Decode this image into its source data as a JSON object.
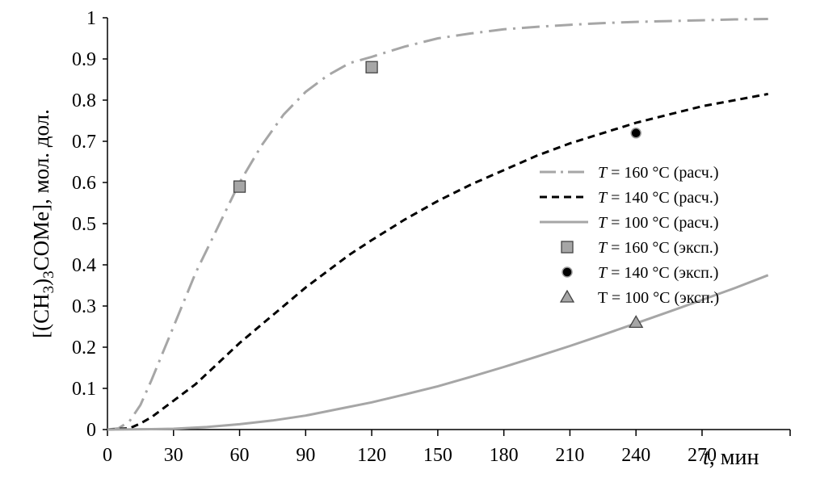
{
  "chart_data": {
    "type": "line",
    "xlabel_var": "t",
    "xlabel_unit": ", мин",
    "ylabel": "[(CH3)3COMe], мол. дол.",
    "ylabel_parts": [
      "[(CH",
      "3",
      ")",
      "3",
      "COMe], мол. дол."
    ],
    "xlim": [
      0,
      310
    ],
    "ylim": [
      0,
      1
    ],
    "x_ticks": [
      "0",
      "30",
      "60",
      "90",
      "120",
      "150",
      "180",
      "210",
      "240",
      "270"
    ],
    "y_ticks": [
      "0",
      "0.1",
      "0.2",
      "0.3",
      "0.4",
      "0.5",
      "0.6",
      "0.7",
      "0.8",
      "0.9",
      "1"
    ],
    "grid": false,
    "legend_position": "right",
    "series": [
      {
        "name": "T = 160 °C (расч.)",
        "legend_prefix": "T",
        "legend_rest": " = 160 °C (расч.)",
        "kind": "line",
        "style": "dashdot",
        "color": "#a6a6a6",
        "x": [
          0,
          5,
          10,
          15,
          20,
          30,
          40,
          50,
          60,
          70,
          80,
          90,
          100,
          110,
          120,
          135,
          150,
          165,
          180,
          195,
          210,
          225,
          240,
          255,
          270,
          285,
          300
        ],
        "y": [
          0,
          0.003,
          0.02,
          0.06,
          0.12,
          0.25,
          0.38,
          0.49,
          0.6,
          0.69,
          0.765,
          0.82,
          0.86,
          0.89,
          0.905,
          0.93,
          0.95,
          0.962,
          0.972,
          0.978,
          0.983,
          0.987,
          0.99,
          0.992,
          0.994,
          0.996,
          0.997
        ]
      },
      {
        "name": "T = 140 °C (расч.)",
        "legend_prefix": "T",
        "legend_rest": " = 140 °C (расч.)",
        "kind": "line",
        "style": "dashed",
        "color": "#000000",
        "x": [
          0,
          10,
          15,
          20,
          30,
          40,
          50,
          60,
          70,
          80,
          90,
          100,
          110,
          120,
          135,
          150,
          165,
          180,
          195,
          210,
          225,
          240,
          255,
          270,
          285,
          300
        ],
        "y": [
          0,
          0.003,
          0.015,
          0.03,
          0.07,
          0.11,
          0.16,
          0.21,
          0.255,
          0.3,
          0.345,
          0.385,
          0.425,
          0.46,
          0.51,
          0.555,
          0.595,
          0.63,
          0.665,
          0.695,
          0.72,
          0.745,
          0.765,
          0.785,
          0.8,
          0.815
        ]
      },
      {
        "name": "T = 100 °C (расч.)",
        "legend_prefix": "T",
        "legend_rest": " = 100 °C (расч.)",
        "kind": "line",
        "style": "solid",
        "color": "#a6a6a6",
        "x": [
          0,
          20,
          30,
          45,
          60,
          75,
          90,
          105,
          120,
          135,
          150,
          165,
          180,
          195,
          210,
          225,
          240,
          255,
          270,
          285,
          300
        ],
        "y": [
          0,
          0.001,
          0.002,
          0.006,
          0.013,
          0.022,
          0.034,
          0.05,
          0.066,
          0.085,
          0.105,
          0.128,
          0.152,
          0.177,
          0.203,
          0.23,
          0.258,
          0.286,
          0.315,
          0.344,
          0.375
        ]
      },
      {
        "name": "T = 160 °C (эксп.)",
        "legend_prefix": "T",
        "legend_rest": " = 160 °C (эксп.)",
        "kind": "points",
        "marker": "square",
        "color": "#a6a6a6",
        "x": [
          60,
          120
        ],
        "y": [
          0.59,
          0.88
        ]
      },
      {
        "name": "T = 140 °C (эксп.)",
        "legend_prefix": "T",
        "legend_rest": " = 140 °C (эксп.)",
        "kind": "points",
        "marker": "circle",
        "color": "#000000",
        "x": [
          240
        ],
        "y": [
          0.72
        ]
      },
      {
        "name": "T = 100 °C (эксп.)",
        "legend_prefix": "",
        "legend_rest": "T = 100 °C (эксп.)",
        "kind": "points",
        "marker": "triangle",
        "color": "#a6a6a6",
        "x": [
          240
        ],
        "y": [
          0.26
        ]
      }
    ]
  }
}
